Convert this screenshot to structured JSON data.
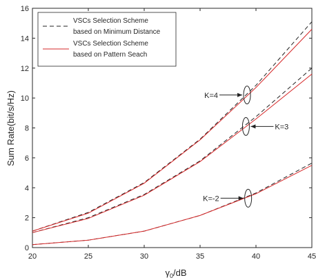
{
  "chart_data": {
    "type": "line",
    "xlabel": "γ0/dB",
    "ylabel": "Sum Rate(bit/s/Hz)",
    "xlim": [
      20,
      45
    ],
    "ylim": [
      0,
      16
    ],
    "xticks": [
      "20",
      "25",
      "30",
      "35",
      "40",
      "45"
    ],
    "yticks": [
      "0",
      "2",
      "4",
      "6",
      "8",
      "10",
      "12",
      "14",
      "16"
    ],
    "grid": false,
    "legend_position": "top-left",
    "series": [
      {
        "name": "VSCs Selection Scheme based on Minimum Distance",
        "legend_lines": [
          "VSCs Selection Scheme",
          "based on Minimum Distance"
        ],
        "color": "#222222",
        "style": "dashed",
        "groups": [
          {
            "x": [
              20,
              25,
              30,
              35,
              40,
              45
            ],
            "y": [
              1.1,
              2.35,
              4.35,
              7.25,
              10.85,
              15.1
            ]
          },
          {
            "x": [
              20,
              25,
              30,
              35,
              40,
              45
            ],
            "y": [
              1.0,
              2.0,
              3.55,
              5.8,
              8.75,
              12.0
            ]
          },
          {
            "x": [
              20,
              25,
              30,
              35,
              40,
              45
            ],
            "y": [
              0.2,
              0.5,
              1.1,
              2.15,
              3.65,
              5.65
            ]
          }
        ]
      },
      {
        "name": "VSCs Selection Scheme based on Pattern Seach",
        "legend_lines": [
          "VSCs Selection Scheme",
          "based on Pattern Seach"
        ],
        "color": "#d62728",
        "style": "solid",
        "groups": [
          {
            "x": [
              20,
              25,
              30,
              35,
              40,
              45
            ],
            "y": [
              1.1,
              2.3,
              4.3,
              7.2,
              10.7,
              14.6
            ]
          },
          {
            "x": [
              20,
              25,
              30,
              35,
              40,
              45
            ],
            "y": [
              1.0,
              1.95,
              3.5,
              5.75,
              8.6,
              11.6
            ]
          },
          {
            "x": [
              20,
              25,
              30,
              35,
              40,
              45
            ],
            "y": [
              0.2,
              0.5,
              1.1,
              2.15,
              3.6,
              5.5
            ]
          }
        ]
      }
    ],
    "annotations": [
      {
        "text": "K=4",
        "ellipse_at": [
          39.2,
          10.2
        ],
        "text_side": "left"
      },
      {
        "text": "K=3",
        "ellipse_at": [
          39.1,
          8.1
        ],
        "text_side": "right"
      },
      {
        "text": "K=-2",
        "ellipse_at": [
          39.3,
          3.3
        ],
        "text_side": "left"
      }
    ]
  }
}
